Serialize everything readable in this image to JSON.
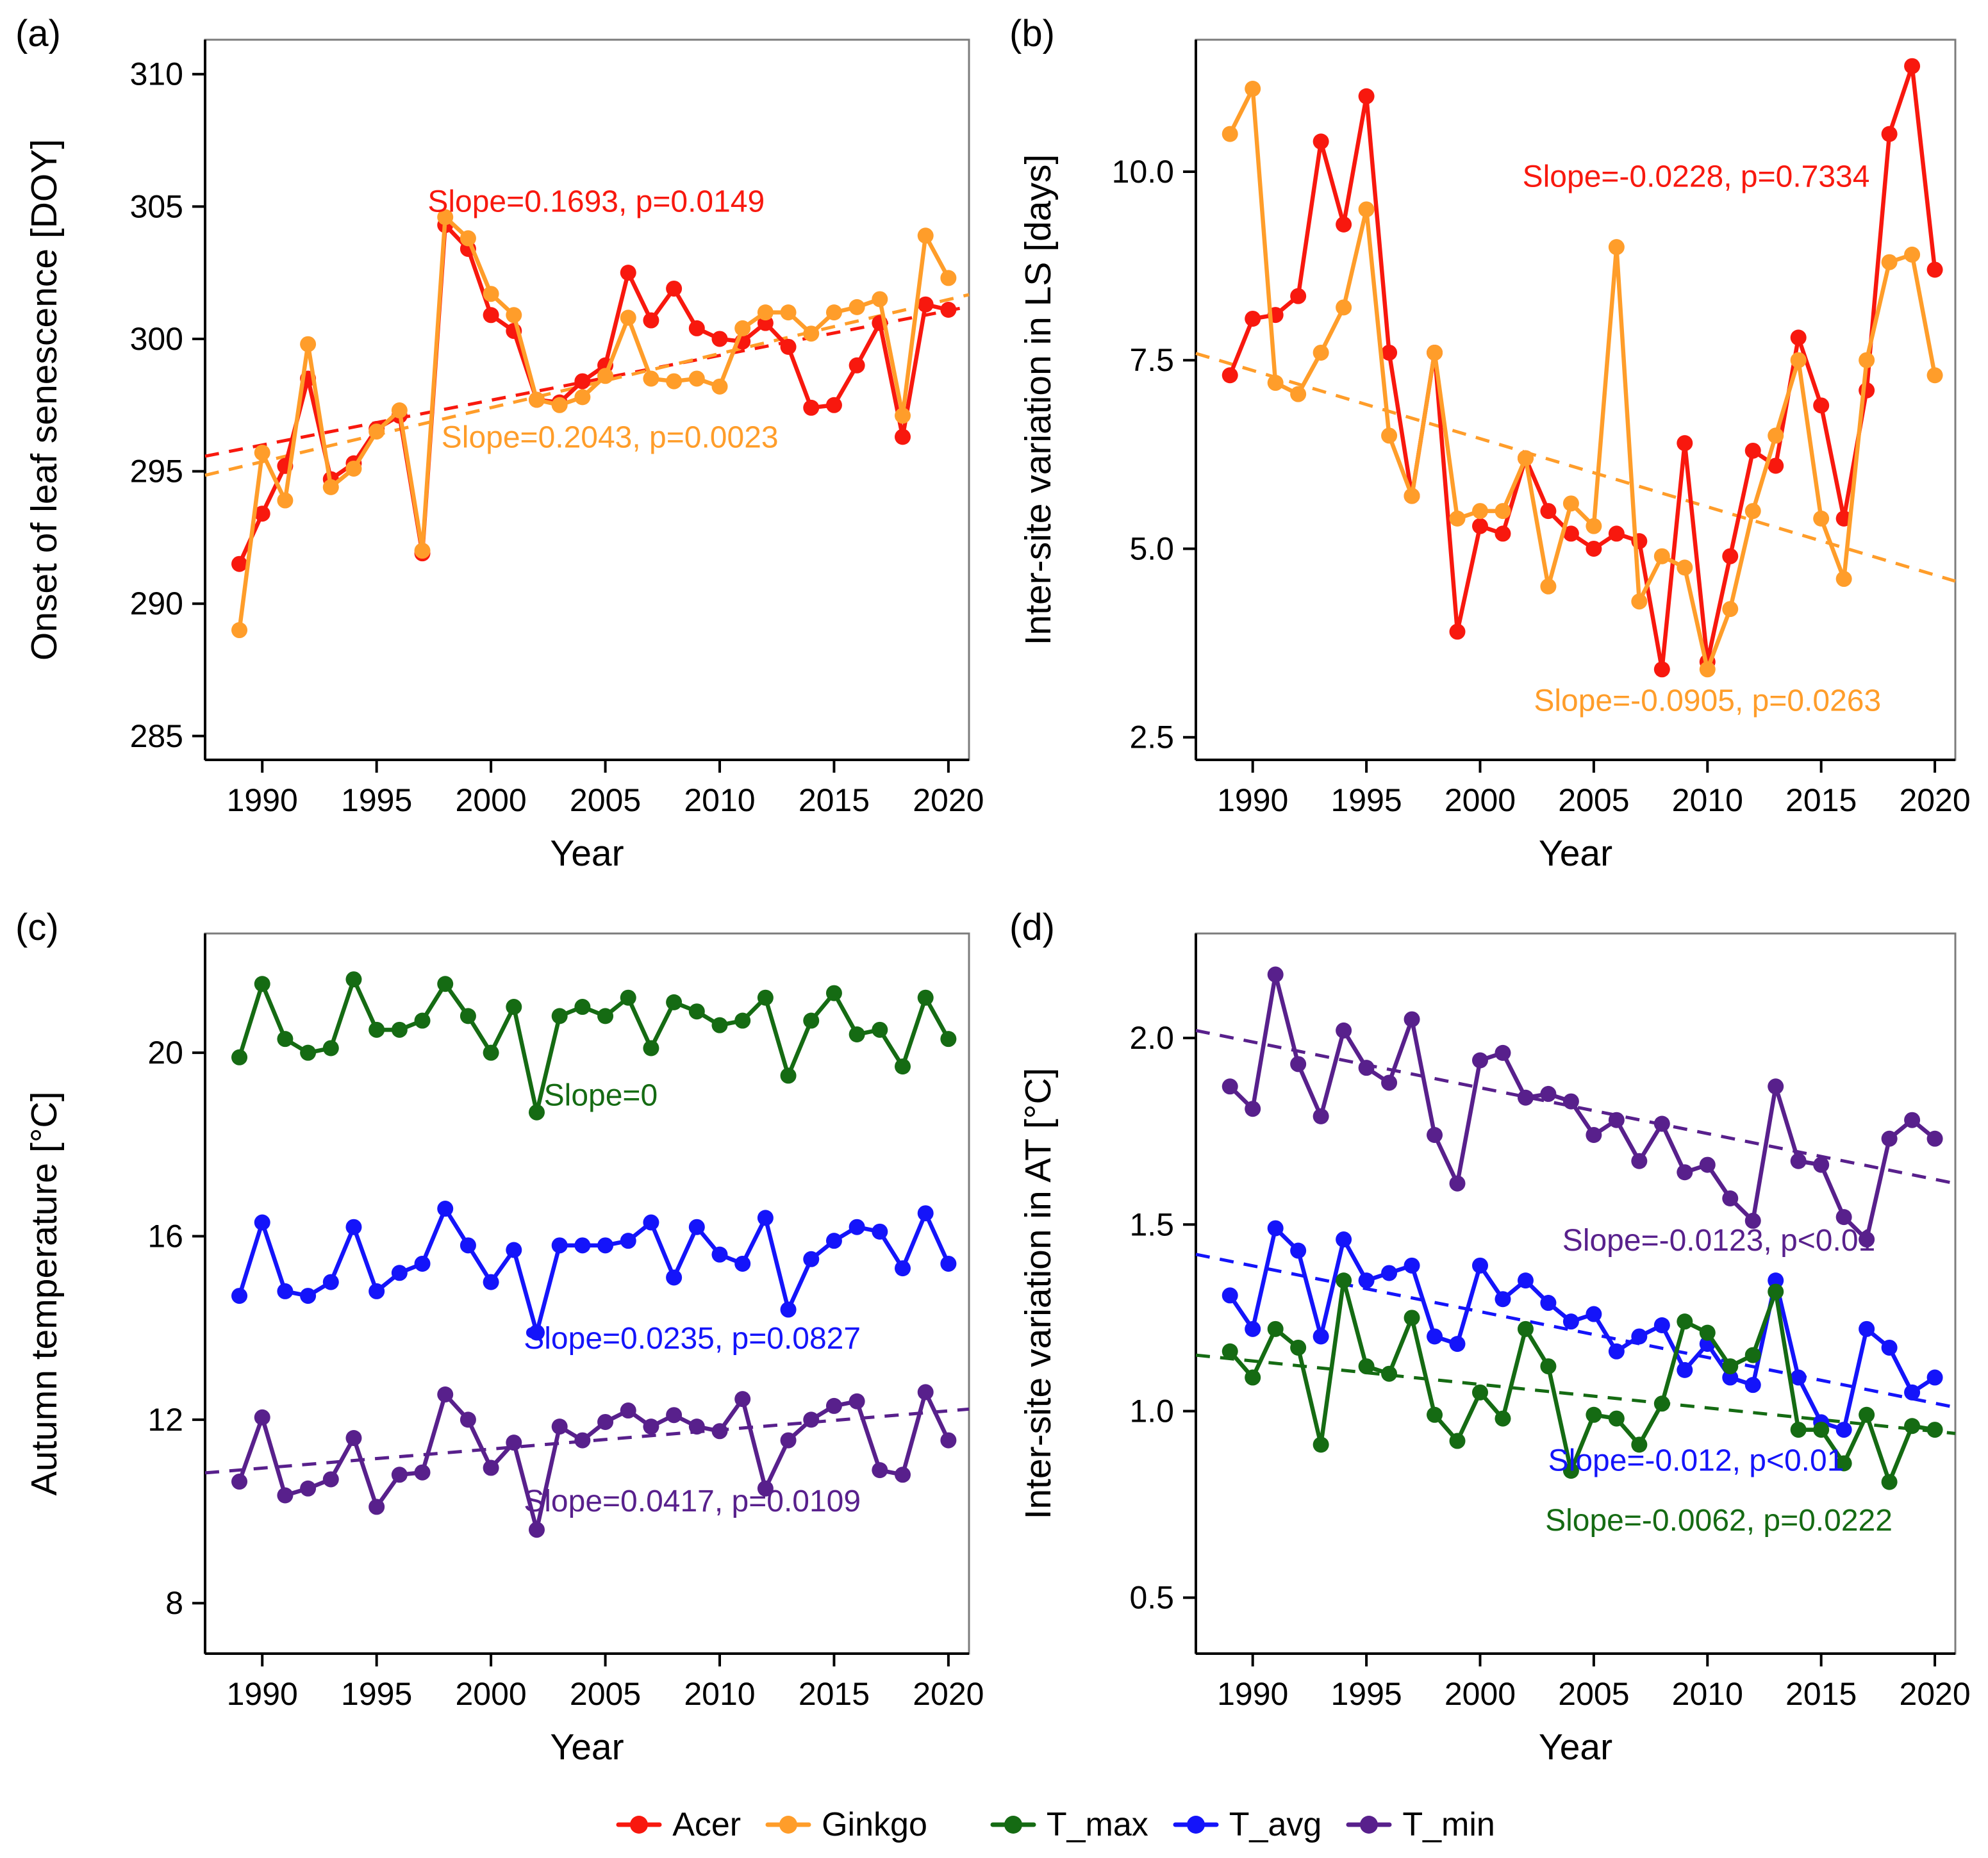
{
  "figure": {
    "background": "#ffffff",
    "xlabel": "Year"
  },
  "colors": {
    "acer": "#f8180e",
    "ginkgo": "#ff9d2a",
    "t_max": "#156b13",
    "t_avg": "#1414fa",
    "t_min": "#58208c",
    "panel_border": "#7c7c7c",
    "axis": "#000000"
  },
  "x_years": [
    1989,
    1990,
    1991,
    1992,
    1993,
    1994,
    1995,
    1996,
    1997,
    1998,
    1999,
    2000,
    2001,
    2002,
    2003,
    2004,
    2005,
    2006,
    2007,
    2008,
    2009,
    2010,
    2011,
    2012,
    2013,
    2014,
    2015,
    2016,
    2017,
    2018,
    2019,
    2020
  ],
  "chart_data": [
    {
      "id": "a",
      "tag": "(a)",
      "type": "line",
      "xlabel": "Year",
      "ylabel": "Onset of leaf senescence [DOY]",
      "xlim": [
        1987.5,
        2020.9
      ],
      "ylim": [
        284.1,
        311.3
      ],
      "xticks": [
        1990,
        1995,
        2000,
        2005,
        2010,
        2015,
        2020
      ],
      "xtick_labels": [
        "1990",
        "1995",
        "2000",
        "2005",
        "2010",
        "2015",
        "2020"
      ],
      "yticks": [
        285,
        290,
        295,
        300,
        305,
        310
      ],
      "ytick_labels": [
        "285",
        "290",
        "295",
        "300",
        "305",
        "310"
      ],
      "series": [
        {
          "name": "Acer",
          "color": "#f8180e",
          "values": [
            291.5,
            293.4,
            295.2,
            298.5,
            294.7,
            295.3,
            296.6,
            297.1,
            291.9,
            304.3,
            303.4,
            300.9,
            300.3,
            297.7,
            297.6,
            298.4,
            299.0,
            302.5,
            300.7,
            301.9,
            300.4,
            300.0,
            299.9,
            300.6,
            299.7,
            297.4,
            297.5,
            299.0,
            300.6,
            296.3,
            301.3,
            301.1
          ]
        },
        {
          "name": "Ginkgo",
          "color": "#ff9d2a",
          "values": [
            289.0,
            295.7,
            293.9,
            299.8,
            294.4,
            295.1,
            296.5,
            297.3,
            292.0,
            304.6,
            303.8,
            301.7,
            300.9,
            297.7,
            297.5,
            297.8,
            298.6,
            300.8,
            298.5,
            298.4,
            298.5,
            298.2,
            300.4,
            301.0,
            301.0,
            300.2,
            301.0,
            301.2,
            301.5,
            297.1,
            303.9,
            302.3
          ]
        }
      ],
      "trends": [
        {
          "color": "#f8180e",
          "x1": 1987.5,
          "y1": 295.57,
          "x2": 2020.9,
          "y2": 301.22
        },
        {
          "color": "#ff9d2a",
          "x1": 1987.5,
          "y1": 294.85,
          "x2": 2020.9,
          "y2": 301.67
        }
      ],
      "annotations": [
        {
          "text": "Slope=0.1693, p=0.0149",
          "color": "#f8180e",
          "x": 2004.6,
          "y": 304.8
        },
        {
          "text": "Slope=0.2043, p=0.0023",
          "color": "#ff9d2a",
          "x": 2005.2,
          "y": 295.9
        }
      ]
    },
    {
      "id": "b",
      "tag": "(b)",
      "type": "line",
      "xlabel": "Year",
      "ylabel": "Inter-site variation in LS [days]",
      "xlim": [
        1987.5,
        2020.9
      ],
      "ylim": [
        2.2,
        11.75
      ],
      "xticks": [
        1990,
        1995,
        2000,
        2005,
        2010,
        2015,
        2020
      ],
      "xtick_labels": [
        "1990",
        "1995",
        "2000",
        "2005",
        "2010",
        "2015",
        "2020"
      ],
      "yticks": [
        2.5,
        5.0,
        7.5,
        10.0
      ],
      "ytick_labels": [
        "2.5",
        "5.0",
        "7.5",
        "10.0"
      ],
      "series": [
        {
          "name": "Acer",
          "color": "#f8180e",
          "values": [
            7.3,
            8.05,
            8.1,
            8.35,
            10.4,
            9.3,
            11.0,
            7.6,
            5.7,
            7.6,
            3.9,
            5.3,
            5.2,
            6.2,
            5.5,
            5.2,
            5.0,
            5.2,
            5.1,
            3.4,
            6.4,
            3.5,
            4.9,
            6.3,
            6.1,
            7.8,
            6.9,
            5.4,
            7.1,
            10.5,
            11.4,
            8.7
          ]
        },
        {
          "name": "Ginkgo",
          "color": "#ff9d2a",
          "values": [
            10.5,
            11.1,
            7.2,
            7.05,
            7.6,
            8.2,
            9.5,
            6.5,
            5.7,
            7.6,
            5.4,
            5.5,
            5.5,
            6.2,
            4.5,
            5.6,
            5.3,
            9.0,
            4.3,
            4.9,
            4.75,
            3.4,
            4.2,
            5.5,
            6.5,
            7.5,
            5.4,
            4.6,
            7.5,
            8.8,
            8.9,
            7.3
          ]
        }
      ],
      "trends": [
        {
          "color": "#ff9d2a",
          "x1": 1987.5,
          "y1": 7.59,
          "x2": 2020.9,
          "y2": 4.57
        }
      ],
      "annotations": [
        {
          "text": "Slope=-0.0228, p=0.7334",
          "color": "#f8180e",
          "x": 2009.5,
          "y": 9.8
        },
        {
          "text": "Slope=-0.0905, p=0.0263",
          "color": "#ff9d2a",
          "x": 2010.0,
          "y": 2.85
        }
      ]
    },
    {
      "id": "c",
      "tag": "(c)",
      "type": "line",
      "xlabel": "Year",
      "ylabel": "Autumn temperature [°C]",
      "xlim": [
        1987.5,
        2020.9
      ],
      "ylim": [
        6.9,
        22.6
      ],
      "xticks": [
        1990,
        1995,
        2000,
        2005,
        2010,
        2015,
        2020
      ],
      "xtick_labels": [
        "1990",
        "1995",
        "2000",
        "2005",
        "2010",
        "2015",
        "2020"
      ],
      "yticks": [
        8,
        12,
        16,
        20
      ],
      "ytick_labels": [
        "8",
        "12",
        "16",
        "20"
      ],
      "series": [
        {
          "name": "T_max",
          "color": "#156b13",
          "values": [
            19.9,
            21.5,
            20.3,
            20.0,
            20.1,
            21.6,
            20.5,
            20.5,
            20.7,
            21.5,
            20.8,
            20.0,
            21.0,
            18.7,
            20.8,
            21.0,
            20.8,
            21.2,
            20.1,
            21.1,
            20.9,
            20.6,
            20.7,
            21.2,
            19.5,
            20.7,
            21.3,
            20.4,
            20.5,
            19.7,
            21.2,
            20.3
          ]
        },
        {
          "name": "T_avg",
          "color": "#1414fa",
          "values": [
            14.7,
            16.3,
            14.8,
            14.7,
            15.0,
            16.2,
            14.8,
            15.2,
            15.4,
            16.6,
            15.8,
            15.0,
            15.7,
            13.9,
            15.8,
            15.8,
            15.8,
            15.9,
            16.3,
            15.1,
            16.2,
            15.6,
            15.4,
            16.4,
            14.4,
            15.5,
            15.9,
            16.2,
            16.1,
            15.3,
            16.5,
            15.4
          ]
        },
        {
          "name": "T_min",
          "color": "#58208c",
          "values": [
            10.65,
            12.05,
            10.35,
            10.5,
            10.7,
            11.6,
            10.1,
            10.8,
            10.85,
            12.55,
            12.0,
            10.95,
            11.5,
            9.6,
            11.85,
            11.55,
            11.95,
            12.2,
            11.85,
            12.1,
            11.85,
            11.75,
            12.45,
            10.5,
            11.55,
            12.0,
            12.3,
            12.4,
            10.9,
            10.8,
            12.6,
            11.55
          ]
        }
      ],
      "trends": [
        {
          "color": "#58208c",
          "x1": 1987.5,
          "y1": 10.84,
          "x2": 2020.9,
          "y2": 12.23
        }
      ],
      "annotations": [
        {
          "text": "Slope=0",
          "color": "#156b13",
          "x": 2004.8,
          "y": 18.85
        },
        {
          "text": "Slope=0.0235, p=0.0827",
          "color": "#1414fa",
          "x": 2008.8,
          "y": 13.55
        },
        {
          "text": "Slope=0.0417, p=0.0109",
          "color": "#58208c",
          "x": 2008.8,
          "y": 10.0
        }
      ]
    },
    {
      "id": "d",
      "tag": "(d)",
      "type": "line",
      "xlabel": "Year",
      "ylabel": "Inter-site variation in AT [°C]",
      "xlim": [
        1987.5,
        2020.9
      ],
      "ylim": [
        0.35,
        2.28
      ],
      "xticks": [
        1990,
        1995,
        2000,
        2005,
        2010,
        2015,
        2020
      ],
      "xtick_labels": [
        "1990",
        "1995",
        "2000",
        "2005",
        "2010",
        "2015",
        "2020"
      ],
      "yticks": [
        0.5,
        1.0,
        1.5,
        2.0
      ],
      "ytick_labels": [
        "0.5",
        "1.0",
        "1.5",
        "2.0"
      ],
      "series": [
        {
          "name": "T_min",
          "color": "#58208c",
          "values": [
            1.87,
            1.81,
            2.17,
            1.93,
            1.79,
            2.02,
            1.92,
            1.88,
            2.05,
            1.74,
            1.61,
            1.94,
            1.96,
            1.84,
            1.85,
            1.83,
            1.74,
            1.78,
            1.67,
            1.77,
            1.64,
            1.66,
            1.57,
            1.51,
            1.87,
            1.67,
            1.66,
            1.52,
            1.46,
            1.73,
            1.78,
            1.73
          ]
        },
        {
          "name": "T_avg",
          "color": "#1414fa",
          "values": [
            1.31,
            1.22,
            1.49,
            1.43,
            1.2,
            1.46,
            1.35,
            1.37,
            1.39,
            1.2,
            1.18,
            1.39,
            1.3,
            1.35,
            1.29,
            1.24,
            1.26,
            1.16,
            1.2,
            1.23,
            1.11,
            1.18,
            1.09,
            1.07,
            1.35,
            1.09,
            0.97,
            0.95,
            1.22,
            1.17,
            1.05,
            1.09
          ]
        },
        {
          "name": "T_max",
          "color": "#156b13",
          "values": [
            1.16,
            1.09,
            1.22,
            1.17,
            0.91,
            1.35,
            1.12,
            1.1,
            1.25,
            0.99,
            0.92,
            1.05,
            0.98,
            1.22,
            1.12,
            0.84,
            0.99,
            0.98,
            0.91,
            1.02,
            1.24,
            1.21,
            1.12,
            1.15,
            1.32,
            0.95,
            0.95,
            0.86,
            0.99,
            0.81,
            0.96,
            0.95
          ]
        }
      ],
      "trends": [
        {
          "color": "#58208c",
          "x1": 1987.5,
          "y1": 2.02,
          "x2": 2020.9,
          "y2": 1.61
        },
        {
          "color": "#1414fa",
          "x1": 1987.5,
          "y1": 1.42,
          "x2": 2020.9,
          "y2": 1.01
        },
        {
          "color": "#156b13",
          "x1": 1987.5,
          "y1": 1.15,
          "x2": 2020.9,
          "y2": 0.94
        }
      ],
      "annotations": [
        {
          "text": "Slope=-0.0123, p<0.01",
          "color": "#58208c",
          "x": 2010.5,
          "y": 1.43
        },
        {
          "text": "Slope=-0.012, p<0.01",
          "color": "#1414fa",
          "x": 2009.5,
          "y": 0.84
        },
        {
          "text": "Slope=-0.0062, p=0.0222",
          "color": "#156b13",
          "x": 2010.5,
          "y": 0.68
        }
      ]
    }
  ],
  "legend": {
    "items": [
      {
        "label": "Acer",
        "color": "#f8180e"
      },
      {
        "label": "Ginkgo",
        "color": "#ff9d2a"
      },
      {
        "label": "T_max",
        "color": "#156b13"
      },
      {
        "label": "T_avg",
        "color": "#1414fa"
      },
      {
        "label": "T_min",
        "color": "#58208c"
      }
    ]
  }
}
